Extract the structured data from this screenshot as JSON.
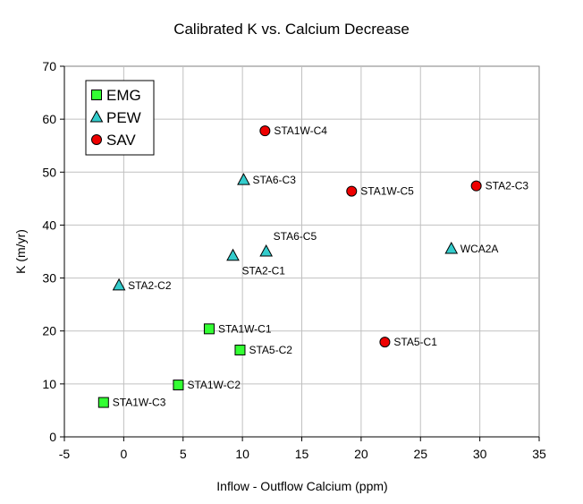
{
  "chart_data": {
    "type": "scatter",
    "title": "Calibrated K vs. Calcium Decrease",
    "xlabel": "Inflow - Outflow Calcium (ppm)",
    "ylabel": "K (m/yr)",
    "xlim": [
      -5,
      35
    ],
    "ylim": [
      0,
      70
    ],
    "xticks": [
      -5,
      0,
      5,
      10,
      15,
      20,
      25,
      30,
      35
    ],
    "yticks": [
      0,
      10,
      20,
      30,
      40,
      50,
      60,
      70
    ],
    "grid": true,
    "legend_position": "top-left",
    "series": [
      {
        "name": "EMG",
        "marker": "square",
        "color": "#33ff33",
        "points": [
          {
            "label": "STA1W-C1",
            "x": 7.2,
            "y": 20.4
          },
          {
            "label": "STA5-C2",
            "x": 9.8,
            "y": 16.4
          },
          {
            "label": "STA1W-C2",
            "x": 4.6,
            "y": 9.8
          },
          {
            "label": "STA1W-C3",
            "x": -1.7,
            "y": 6.5
          }
        ]
      },
      {
        "name": "PEW",
        "marker": "triangle",
        "color": "#33cccc",
        "points": [
          {
            "label": "STA6-C3",
            "x": 10.1,
            "y": 48.5
          },
          {
            "label": "STA6-C5",
            "x": 12.0,
            "y": 35.0
          },
          {
            "label": "STA2-C1",
            "x": 9.2,
            "y": 34.2
          },
          {
            "label": "WCA2A",
            "x": 27.6,
            "y": 35.5
          },
          {
            "label": "STA2-C2",
            "x": -0.4,
            "y": 28.6
          }
        ]
      },
      {
        "name": "SAV",
        "marker": "circle",
        "color": "#ee0000",
        "points": [
          {
            "label": "STA1W-C4",
            "x": 11.9,
            "y": 57.8
          },
          {
            "label": "STA1W-C5",
            "x": 19.2,
            "y": 46.4
          },
          {
            "label": "STA2-C3",
            "x": 29.7,
            "y": 47.4
          },
          {
            "label": "STA5-C1",
            "x": 22.0,
            "y": 17.9
          }
        ]
      }
    ]
  }
}
